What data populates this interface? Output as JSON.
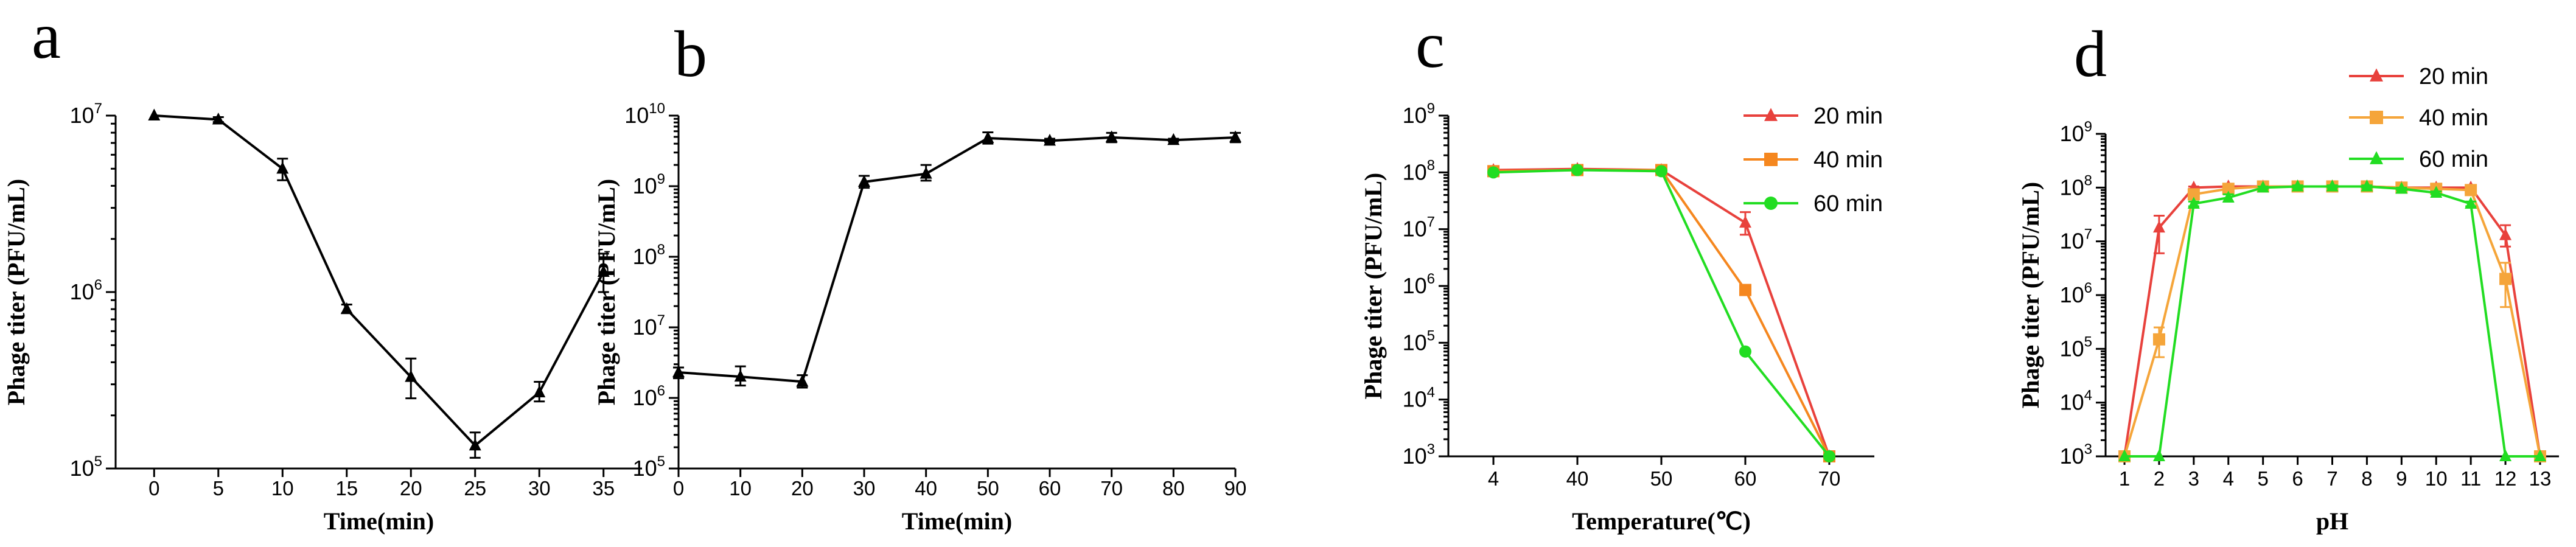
{
  "chart_data": [
    {
      "panel": "a",
      "type": "line",
      "xlabel": "Time(min)",
      "ylabel": "Phage titer (PFU/mL)",
      "yscale": "log",
      "ylim_exp": [
        5,
        7
      ],
      "x_ticks": [
        "0",
        "5",
        "10",
        "15",
        "20",
        "25",
        "30",
        "35"
      ],
      "series": [
        {
          "name": "titer",
          "color": "#000000",
          "marker": "triangle",
          "x": [
            0,
            5,
            10,
            15,
            20,
            25,
            30,
            35
          ],
          "y": [
            10000000,
            9500000,
            5000000,
            800000,
            330000,
            135000,
            270000,
            1300000
          ],
          "err_low": [
            10000000,
            9200000,
            4300000,
            760000,
            250000,
            115000,
            240000,
            1000000
          ],
          "err_high": [
            10000000,
            9800000,
            5700000,
            850000,
            420000,
            160000,
            310000,
            1650000
          ]
        }
      ]
    },
    {
      "panel": "b",
      "type": "line",
      "xlabel": "Time(min)",
      "ylabel": "Phage titer (PFU/mL)",
      "yscale": "log",
      "ylim_exp": [
        5,
        10
      ],
      "x_ticks": [
        "0",
        "10",
        "20",
        "30",
        "40",
        "50",
        "60",
        "70",
        "80",
        "90"
      ],
      "series": [
        {
          "name": "titer",
          "color": "#000000",
          "marker": "triangle",
          "x": [
            0,
            10,
            20,
            30,
            40,
            50,
            60,
            70,
            80,
            90
          ],
          "y": [
            2300000,
            2000000,
            1700000,
            1150000000,
            1500000000,
            4800000000,
            4400000000,
            4900000000,
            4500000000,
            4900000000
          ],
          "err_low": [
            1900000,
            1500000,
            1400000,
            950000000,
            1200000000,
            4000000000,
            4200000000,
            4200000000,
            4300000000,
            4200000000
          ],
          "err_high": [
            2700000,
            2800000,
            2100000,
            1400000000,
            2000000000,
            5800000000,
            4700000000,
            5700000000,
            4700000000,
            5700000000
          ]
        }
      ]
    },
    {
      "panel": "c",
      "type": "line",
      "xlabel": "Temperature(℃)",
      "ylabel": "Phage titer (PFU/mL)",
      "yscale": "log",
      "ylim_exp": [
        3,
        9
      ],
      "x_ticks": [
        "4",
        "40",
        "50",
        "60",
        "70"
      ],
      "legend_position": "top-right",
      "series": [
        {
          "name": "20 min",
          "color": "#e8413c",
          "marker": "triangle",
          "y": [
            110000000,
            115000000,
            110000000,
            13000000,
            1000
          ],
          "err_low": [
            100000000,
            105000000,
            100000000,
            8000000,
            1000
          ],
          "err_high": [
            120000000,
            125000000,
            120000000,
            20000000,
            1000
          ]
        },
        {
          "name": "40 min",
          "color": "#f5871f",
          "marker": "square",
          "y": [
            105000000,
            110000000,
            110000000,
            850000,
            1000
          ],
          "err_low": [
            100000000,
            105000000,
            100000000,
            800000,
            1000
          ],
          "err_high": [
            110000000,
            115000000,
            115000000,
            900000,
            1000
          ]
        },
        {
          "name": "60 min",
          "color": "#22dd22",
          "marker": "circle",
          "y": [
            100000000,
            110000000,
            105000000,
            70000,
            1000
          ],
          "err_low": [
            100000000,
            105000000,
            100000000,
            65000,
            1000
          ],
          "err_high": [
            100000000,
            115000000,
            110000000,
            75000,
            1000
          ]
        }
      ]
    },
    {
      "panel": "d",
      "type": "line",
      "xlabel": "pH",
      "ylabel": "Phage titer (PFU/mL)",
      "yscale": "log",
      "ylim_exp": [
        3,
        9
      ],
      "x_ticks": [
        "1",
        "2",
        "3",
        "4",
        "5",
        "6",
        "7",
        "8",
        "9",
        "10",
        "11",
        "12",
        "13"
      ],
      "legend_position": "top-right",
      "series": [
        {
          "name": "20 min",
          "color": "#e8413c",
          "marker": "triangle",
          "y": [
            1000,
            18000000,
            100000000,
            105000000,
            105000000,
            105000000,
            105000000,
            105000000,
            100000000,
            100000000,
            100000000,
            13000000,
            1000
          ],
          "err_low": [
            1000,
            6000000,
            95000000,
            100000000,
            100000000,
            100000000,
            100000000,
            100000000,
            95000000,
            95000000,
            95000000,
            8000000,
            1000
          ],
          "err_high": [
            1000,
            30000000,
            105000000,
            110000000,
            110000000,
            110000000,
            110000000,
            110000000,
            105000000,
            105000000,
            105000000,
            20000000,
            1000
          ]
        },
        {
          "name": "40 min",
          "color": "#f5a53a",
          "marker": "square",
          "y": [
            1000,
            150000,
            75000000,
            95000000,
            105000000,
            105000000,
            105000000,
            105000000,
            100000000,
            95000000,
            90000000,
            2000000,
            1000
          ],
          "err_low": [
            1000,
            70000,
            65000000,
            90000000,
            100000000,
            100000000,
            100000000,
            100000000,
            95000000,
            90000000,
            85000000,
            600000,
            1000
          ],
          "err_high": [
            1000,
            250000,
            85000000,
            100000000,
            110000000,
            110000000,
            110000000,
            110000000,
            105000000,
            100000000,
            95000000,
            4000000,
            1000
          ]
        },
        {
          "name": "60 min",
          "color": "#22dd22",
          "marker": "triangle",
          "y": [
            1000,
            1000,
            50000000,
            65000000,
            100000000,
            105000000,
            105000000,
            105000000,
            95000000,
            80000000,
            50000000,
            1000,
            1000
          ],
          "err_low": [
            1000,
            1000,
            45000000,
            55000000,
            95000000,
            100000000,
            100000000,
            100000000,
            90000000,
            75000000,
            45000000,
            1000,
            1000
          ],
          "err_high": [
            1000,
            1000,
            55000000,
            75000000,
            105000000,
            110000000,
            110000000,
            110000000,
            100000000,
            85000000,
            55000000,
            1000,
            1000
          ]
        }
      ]
    }
  ]
}
